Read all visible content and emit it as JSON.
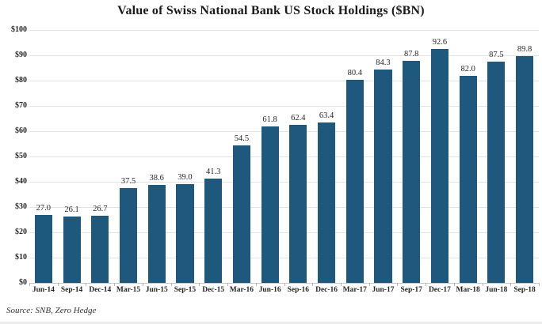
{
  "title": "Value of Swiss National Bank US Stock Holdings ($BN)",
  "source": "Source: SNB, Zero Hedge",
  "colors": {
    "bar": "#1F587D",
    "gridline": "#e2e2e2",
    "axis_text": "#262626",
    "title_text": "#1a1a1a",
    "background": "#ffffff"
  },
  "chart_data": {
    "type": "bar",
    "title": "Value of Swiss National Bank US Stock Holdings ($BN)",
    "xlabel": "",
    "ylabel": "",
    "categories": [
      "Jun-14",
      "Sep-14",
      "Dec-14",
      "Mar-15",
      "Jun-15",
      "Sep-15",
      "Dec-15",
      "Mar-16",
      "Jun-16",
      "Sep-16",
      "Dec-16",
      "Mar-17",
      "Jun-17",
      "Sep-17",
      "Dec-17",
      "Mar-18",
      "Jun-18",
      "Sep-18"
    ],
    "values": [
      27.0,
      26.1,
      26.7,
      37.5,
      38.6,
      39.0,
      41.3,
      54.5,
      61.8,
      62.4,
      63.4,
      80.4,
      84.3,
      87.8,
      92.6,
      82.0,
      87.5,
      89.8
    ],
    "value_labels": [
      "27.0",
      "26.1",
      "26.7",
      "37.5",
      "38.6",
      "39.0",
      "41.3",
      "54.5",
      "61.8",
      "62.4",
      "63.4",
      "80.4",
      "84.3",
      "87.8",
      "92.6",
      "82.0",
      "87.5",
      "89.8"
    ],
    "ylim": [
      0,
      100
    ],
    "yticks": [
      0,
      10,
      20,
      30,
      40,
      50,
      60,
      70,
      80,
      90,
      100
    ],
    "ytick_labels": [
      "$0",
      "$10",
      "$20",
      "$30",
      "$40",
      "$50",
      "$60",
      "$70",
      "$80",
      "$90",
      "$100"
    ],
    "grid": true,
    "legend": false,
    "source_note": "Source: SNB, Zero Hedge"
  }
}
